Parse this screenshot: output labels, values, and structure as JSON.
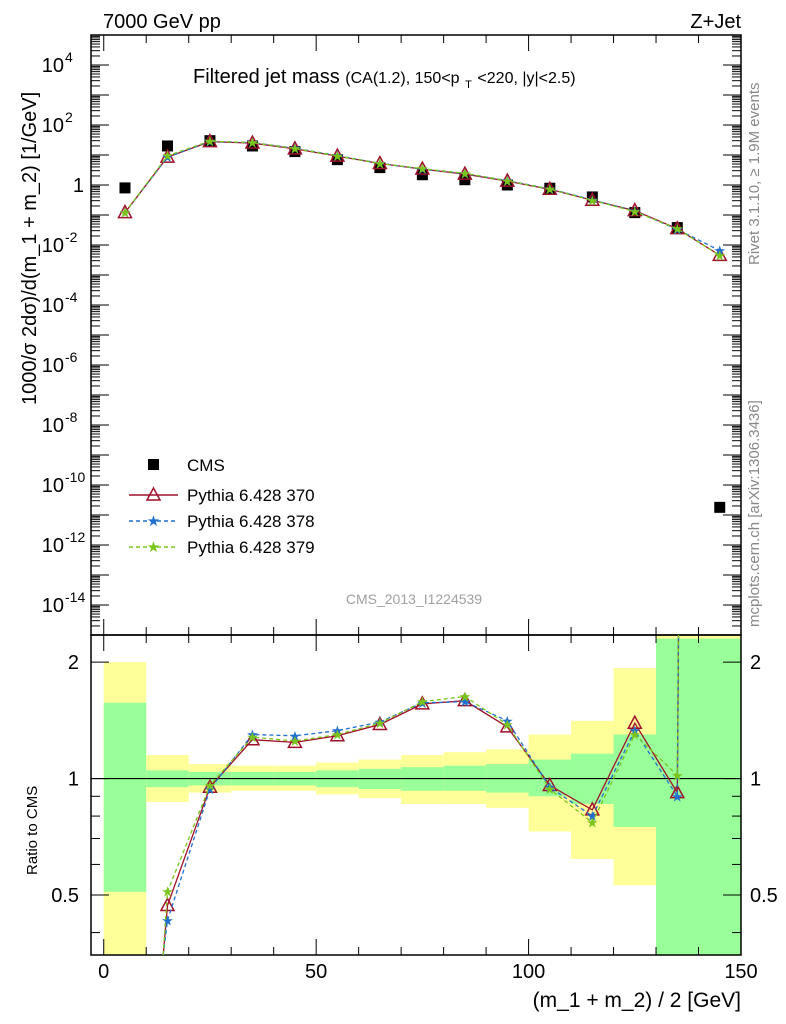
{
  "header": {
    "left": "7000 GeV pp",
    "right": "Z+Jet"
  },
  "title": {
    "main": "Filtered jet mass",
    "cuts_pre": "(CA(1.2), 150<p",
    "cuts_sub": "T",
    "cuts_post": "<220, |y|<2.5)"
  },
  "side_labels": {
    "rivet": "Rivet 3.1.10, ≥ 1.9M events",
    "site": "mcplots.cern.ch [arXiv:1306.3436]"
  },
  "analysis_id": "CMS_2013_I1224539",
  "colors": {
    "cms": "#000000",
    "p370": "#a0102a",
    "p378": "#1f6fd0",
    "p379": "#7ac51b",
    "band_green": "#99ff99",
    "band_yellow": "#ffff99"
  },
  "chart_data": [
    {
      "type": "scatter",
      "panel": "main",
      "ylabel": "1000/σ 2dσ)/d(m_1 + m_2) [1/GeV]",
      "xlim": [
        -3,
        150
      ],
      "ylim_log10": [
        -15,
        5
      ],
      "y_scale": "log",
      "y_ticks": [
        {
          "exp": 4,
          "label": "4"
        },
        {
          "exp": 2,
          "label": "2"
        },
        {
          "exp": 0,
          "label": "1"
        },
        {
          "exp": -2,
          "label": "-2"
        },
        {
          "exp": -4,
          "label": "-4"
        },
        {
          "exp": -6,
          "label": "-6"
        },
        {
          "exp": -8,
          "label": "-8"
        },
        {
          "exp": -10,
          "label": "-10"
        },
        {
          "exp": -12,
          "label": "-12"
        },
        {
          "exp": -14,
          "label": "-14"
        }
      ],
      "legend_position": "bottom-left",
      "x": [
        5,
        15,
        25,
        35,
        45,
        55,
        65,
        75,
        85,
        95,
        105,
        115,
        125,
        135,
        145
      ],
      "series": [
        {
          "name": "CMS",
          "key": "cms",
          "values": [
            0.8,
            20,
            30,
            20,
            13,
            7.0,
            3.8,
            2.2,
            1.5,
            1.0,
            0.78,
            0.4,
            0.12,
            0.038,
            1.8e-11
          ]
        },
        {
          "name": "Pythia 6.428 370",
          "key": "p370",
          "values": [
            0.12,
            8.5,
            28,
            25,
            16,
            9.2,
            5.2,
            3.4,
            2.3,
            1.35,
            0.72,
            0.31,
            0.14,
            0.035,
            0.0045
          ]
        },
        {
          "name": "Pythia 6.428 378",
          "key": "p378",
          "values": [
            0.12,
            8.6,
            28.5,
            26,
            16.8,
            9.5,
            5.3,
            3.4,
            2.4,
            1.4,
            0.74,
            0.32,
            0.135,
            0.033,
            0.0065
          ]
        },
        {
          "name": "Pythia 6.428 379",
          "key": "p379",
          "values": [
            0.12,
            9.5,
            29,
            26,
            16.5,
            9.3,
            5.2,
            3.5,
            2.45,
            1.38,
            0.73,
            0.31,
            0.13,
            0.035,
            0.0045
          ]
        }
      ]
    },
    {
      "type": "line",
      "panel": "ratio",
      "xlabel": "(m_1 + m_2) / 2 [GeV]",
      "ylabel": "Ratio to CMS",
      "xlim": [
        -3,
        150
      ],
      "ylim": [
        0.35,
        2.35
      ],
      "y_scale": "log",
      "x_ticks": [
        0,
        50,
        100,
        150
      ],
      "y_ticks": [
        {
          "value": 0.5,
          "label": "0.5"
        },
        {
          "value": 1,
          "label": "1"
        },
        {
          "value": 2,
          "label": "2"
        }
      ],
      "bins": [
        0,
        10,
        20,
        30,
        40,
        50,
        60,
        70,
        80,
        90,
        100,
        110,
        120,
        130,
        150
      ],
      "band_green": [
        [
          0.51,
          1.57
        ],
        [
          0.95,
          1.05
        ],
        [
          0.96,
          1.04
        ],
        [
          0.96,
          1.04
        ],
        [
          0.96,
          1.04
        ],
        [
          0.95,
          1.05
        ],
        [
          0.94,
          1.06
        ],
        [
          0.93,
          1.07
        ],
        [
          0.93,
          1.08
        ],
        [
          0.92,
          1.09
        ],
        [
          0.9,
          1.12
        ],
        [
          0.86,
          1.16
        ],
        [
          0.75,
          1.3
        ],
        [
          0.3,
          2.3
        ]
      ],
      "band_yellow": [
        [
          0.35,
          2.0
        ],
        [
          0.87,
          1.15
        ],
        [
          0.92,
          1.09
        ],
        [
          0.93,
          1.08
        ],
        [
          0.93,
          1.08
        ],
        [
          0.91,
          1.1
        ],
        [
          0.89,
          1.12
        ],
        [
          0.86,
          1.15
        ],
        [
          0.86,
          1.17
        ],
        [
          0.84,
          1.19
        ],
        [
          0.73,
          1.3
        ],
        [
          0.62,
          1.41
        ],
        [
          0.53,
          1.93
        ],
        [
          0.3,
          2.4
        ]
      ],
      "x": [
        15,
        25,
        35,
        45,
        55,
        65,
        75,
        85,
        95,
        105,
        115,
        125,
        135
      ],
      "series": [
        {
          "name": "Pythia 6.428 370",
          "key": "p370",
          "values": [
            0.47,
            0.95,
            1.26,
            1.24,
            1.29,
            1.38,
            1.56,
            1.59,
            1.36,
            0.96,
            0.83,
            1.39,
            0.92
          ]
        },
        {
          "name": "Pythia 6.428 378",
          "key": "p378",
          "values": [
            0.43,
            0.94,
            1.3,
            1.29,
            1.33,
            1.4,
            1.57,
            1.58,
            1.41,
            0.95,
            0.8,
            1.33,
            0.9
          ]
        },
        {
          "name": "Pythia 6.428 379",
          "key": "p379",
          "values": [
            0.51,
            0.96,
            1.28,
            1.25,
            1.3,
            1.39,
            1.58,
            1.63,
            1.38,
            0.94,
            0.77,
            1.3,
            1.02
          ]
        }
      ]
    }
  ]
}
